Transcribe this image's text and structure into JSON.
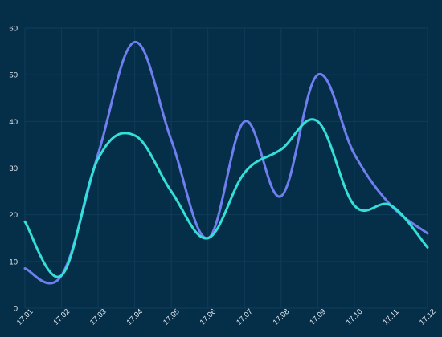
{
  "colors": {
    "background": "#052e48",
    "grid": "#0f3d5a",
    "tick_text": "#e6eef5",
    "series_a": "#6f7ff0",
    "series_b": "#33e0d8"
  },
  "chart_data": {
    "type": "line",
    "title": "",
    "xlabel": "",
    "ylabel": "",
    "categories": [
      "17.01",
      "17.02",
      "17.03",
      "17.04",
      "17.05",
      "17.06",
      "17.07",
      "17.08",
      "17.09",
      "17.10",
      "17.11",
      "17.12"
    ],
    "ylim": [
      0,
      60
    ],
    "yticks": [
      0,
      10,
      20,
      30,
      40,
      50,
      60
    ],
    "grid": true,
    "smooth": true,
    "legend": "none",
    "series": [
      {
        "color": "#6f7ff0",
        "values": [
          8.5,
          7,
          33,
          57,
          36,
          15,
          40,
          24,
          50,
          33,
          22,
          16
        ]
      },
      {
        "color": "#33e0d8",
        "values": [
          18.5,
          7,
          32,
          37,
          25,
          15,
          29,
          34,
          40,
          22,
          22,
          13
        ]
      }
    ]
  }
}
